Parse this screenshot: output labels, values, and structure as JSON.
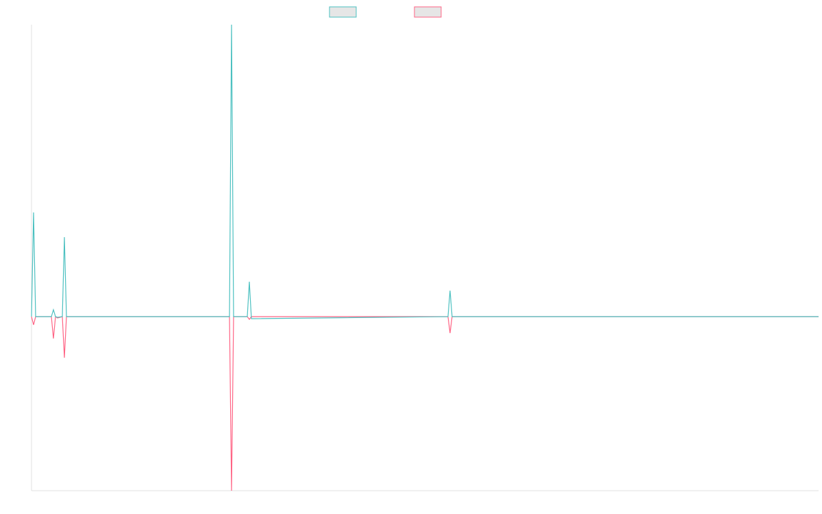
{
  "chart_data": {
    "type": "line",
    "x": [
      0,
      3,
      6,
      29,
      32,
      35,
      38,
      45,
      48,
      51,
      289,
      292,
      295,
      315,
      318,
      321,
      608,
      611,
      614,
      1149
    ],
    "xlim": [
      0,
      1149
    ],
    "ylim": [
      -254,
      426
    ],
    "series": [
      {
        "color": "#4bc0c0",
        "values": [
          0,
          152,
          0,
          0,
          10,
          0,
          -1,
          0,
          116,
          0,
          0,
          426,
          0,
          0,
          51,
          -3,
          0,
          38,
          0,
          0
        ]
      },
      {
        "color": "#ff6384",
        "values": [
          0,
          -12,
          0,
          0,
          -32,
          0,
          -2,
          0,
          -60,
          0,
          0,
          -254,
          0,
          0,
          -4,
          0,
          0,
          -24,
          0,
          0
        ]
      }
    ]
  }
}
